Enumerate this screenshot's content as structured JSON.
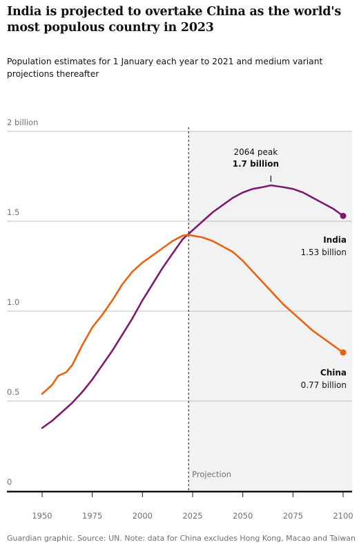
{
  "title": "India is projected to overtake China as the world's most populous country in 2023",
  "subtitle": "Population estimates for 1 January each year to 2021 and medium variant projections thereafter",
  "footer": "Guardian graphic. Source: UN. Note: data for China excludes Hong Kong, Macao and Taiwan",
  "colors": {
    "india": "#7d1a6e",
    "china": "#e8620f",
    "projection_shade": "#f2f2f2",
    "grid": "#bcbcbc",
    "axis": "#121212"
  },
  "chart_data": {
    "type": "line",
    "x_ticks": [
      "1950",
      "1975",
      "2000",
      "2025",
      "2050",
      "2075",
      "2100"
    ],
    "y_ticks": [
      "0",
      "0.5",
      "1.0",
      "1.5",
      "2 billion"
    ],
    "xlim": [
      1950,
      2100
    ],
    "ylim": [
      0,
      2
    ],
    "grid": true,
    "projection": {
      "start_year": 2023,
      "label": "Projection"
    },
    "annotations": {
      "peak_label": "2064 peak",
      "peak_value": "1.7 billion",
      "peak_year": 2064,
      "peak_population": 1.7
    },
    "series": [
      {
        "name": "India",
        "end_label": "1.53 billion",
        "x": [
          1950,
          1955,
          1960,
          1965,
          1970,
          1975,
          1980,
          1985,
          1990,
          1995,
          2000,
          2005,
          2010,
          2015,
          2020,
          2023,
          2025,
          2030,
          2035,
          2040,
          2045,
          2050,
          2055,
          2060,
          2064,
          2070,
          2075,
          2080,
          2085,
          2090,
          2095,
          2100
        ],
        "y": [
          0.35,
          0.39,
          0.44,
          0.49,
          0.55,
          0.62,
          0.7,
          0.78,
          0.87,
          0.96,
          1.06,
          1.15,
          1.24,
          1.32,
          1.4,
          1.43,
          1.45,
          1.5,
          1.55,
          1.59,
          1.63,
          1.66,
          1.68,
          1.69,
          1.7,
          1.69,
          1.68,
          1.66,
          1.63,
          1.6,
          1.57,
          1.53
        ]
      },
      {
        "name": "China",
        "end_label": "0.77 billion",
        "x": [
          1950,
          1955,
          1958,
          1960,
          1962,
          1965,
          1970,
          1975,
          1980,
          1985,
          1990,
          1995,
          2000,
          2005,
          2010,
          2015,
          2020,
          2023,
          2025,
          2030,
          2035,
          2040,
          2045,
          2050,
          2055,
          2060,
          2065,
          2070,
          2075,
          2080,
          2085,
          2090,
          2095,
          2100
        ],
        "y": [
          0.54,
          0.59,
          0.64,
          0.65,
          0.66,
          0.7,
          0.81,
          0.91,
          0.98,
          1.06,
          1.15,
          1.22,
          1.27,
          1.31,
          1.35,
          1.39,
          1.42,
          1.425,
          1.42,
          1.41,
          1.39,
          1.36,
          1.33,
          1.28,
          1.22,
          1.16,
          1.1,
          1.04,
          0.99,
          0.94,
          0.89,
          0.85,
          0.81,
          0.77
        ]
      }
    ]
  }
}
